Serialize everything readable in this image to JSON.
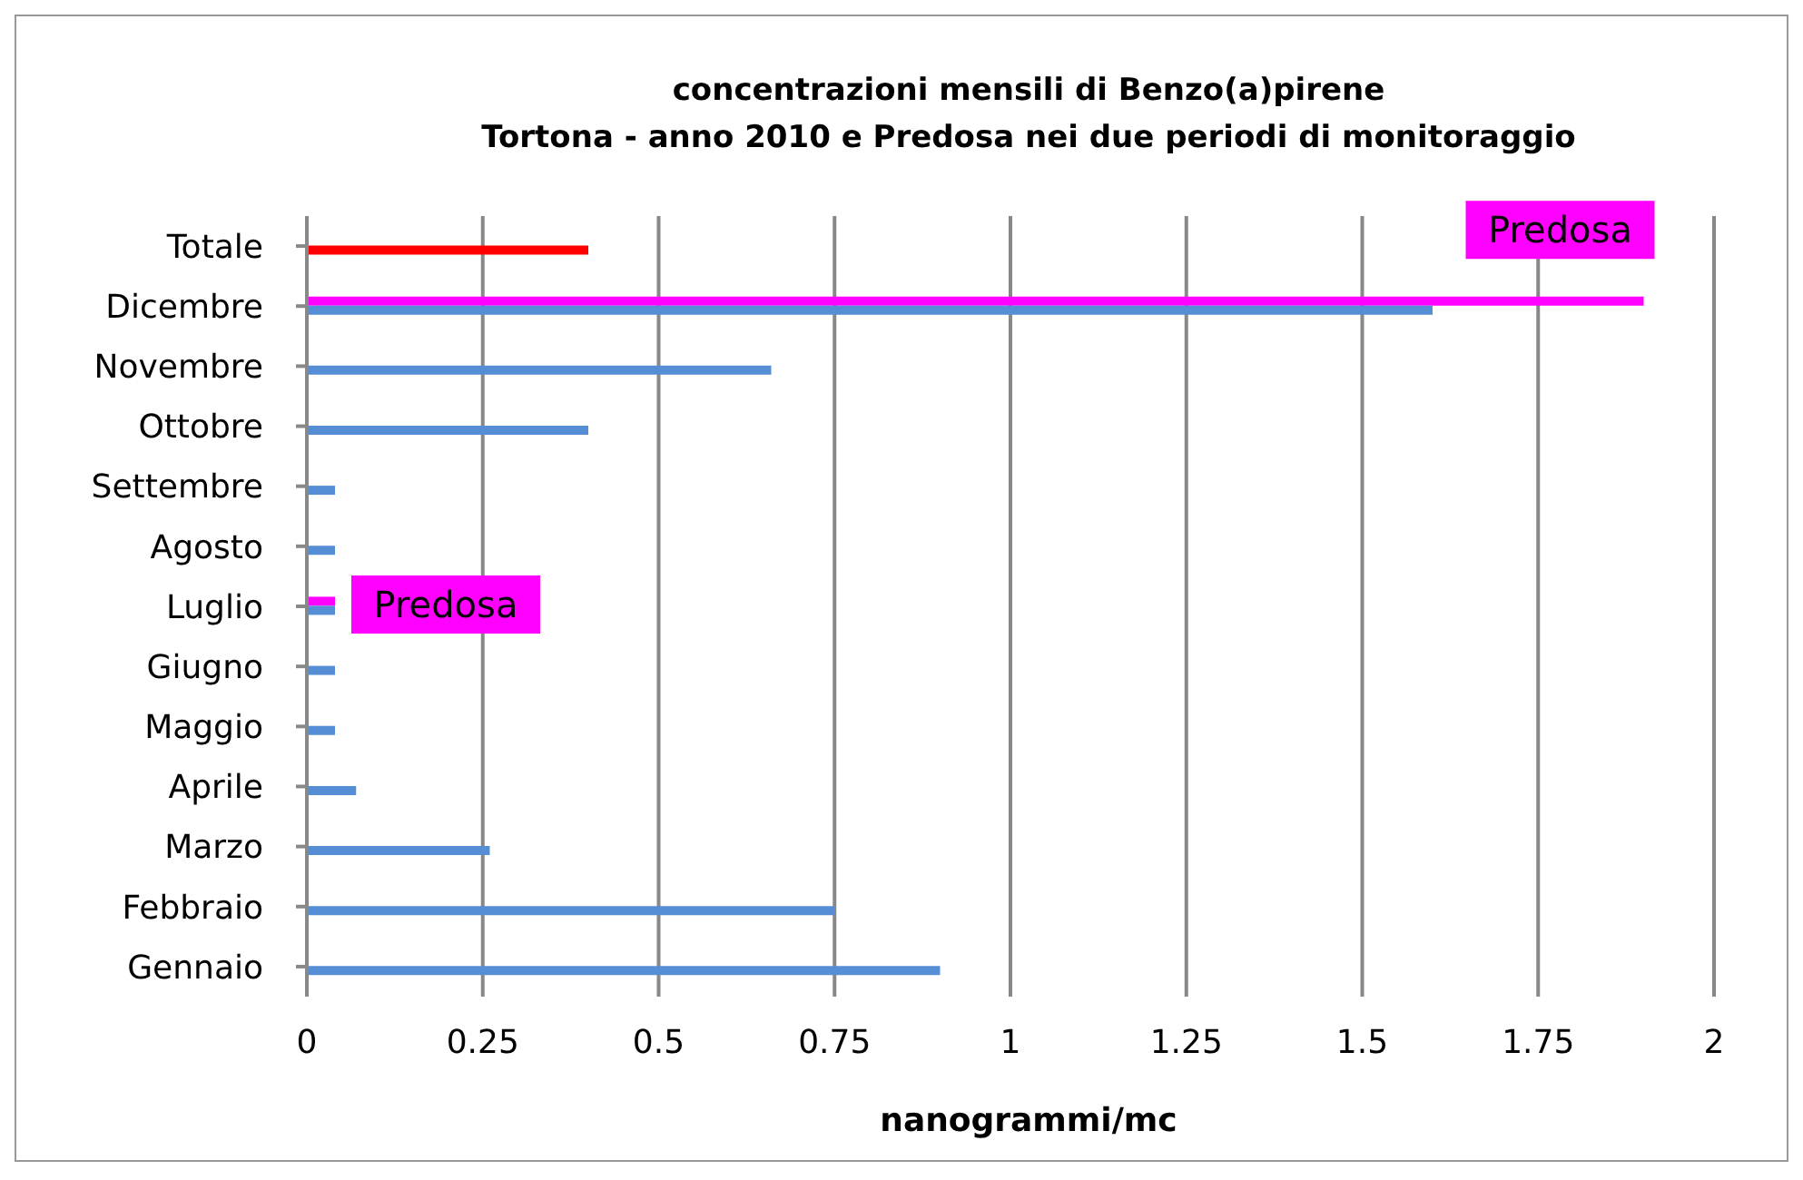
{
  "chart_data": {
    "type": "bar",
    "orientation": "horizontal",
    "title": "concentrazioni mensili di Benzo(a)pirene",
    "subtitle": "Tortona - anno 2010 e Predosa nei due periodi di monitoraggio",
    "xlabel": "nanogrammi/mc",
    "categories": [
      "Totale",
      "Dicembre",
      "Novembre",
      "Ottobre",
      "Settembre",
      "Agosto",
      "Luglio",
      "Giugno",
      "Maggio",
      "Aprile",
      "Marzo",
      "Febbraio",
      "Gennaio"
    ],
    "series": [
      {
        "color": "#ff00ff",
        "values": [
          null,
          1.9,
          null,
          null,
          null,
          null,
          0.04,
          null,
          null,
          null,
          null,
          null,
          null
        ]
      },
      {
        "color": "#558ed5",
        "colors": [
          "#ff0000",
          "#558ed5",
          "#558ed5",
          "#558ed5",
          "#558ed5",
          "#558ed5",
          "#558ed5",
          "#558ed5",
          "#558ed5",
          "#558ed5",
          "#558ed5",
          "#558ed5",
          "#558ed5"
        ],
        "values": [
          0.4,
          1.6,
          0.66,
          0.4,
          0.04,
          0.04,
          0.04,
          0.04,
          0.04,
          0.07,
          0.26,
          0.75,
          0.9
        ]
      }
    ],
    "xlim": [
      0,
      2
    ],
    "xticks": [
      0,
      0.25,
      0.5,
      0.75,
      1,
      1.25,
      1.5,
      1.75,
      2
    ],
    "grid": "x",
    "legend": false,
    "annotations": [
      {
        "text": "Predosa",
        "x": 1.9,
        "y": "Dicembre"
      },
      {
        "text": "Predosa",
        "x": 0.04,
        "y": "Luglio"
      }
    ]
  }
}
